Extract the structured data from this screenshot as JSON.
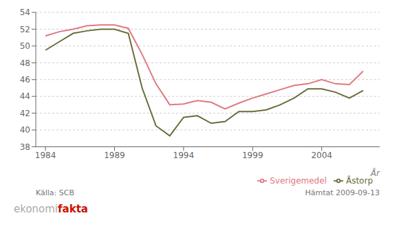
{
  "chart_data": {
    "type": "line",
    "x_label": "År",
    "x": [
      1984,
      1985,
      1986,
      1987,
      1988,
      1989,
      1990,
      1991,
      1992,
      1993,
      1994,
      1995,
      1996,
      1997,
      1998,
      1999,
      2000,
      2001,
      2002,
      2003,
      2004,
      2005,
      2006,
      2007
    ],
    "series": [
      {
        "name": "Sverigemedel",
        "color": "#e07880",
        "values": [
          51.2,
          51.7,
          52.0,
          52.4,
          52.5,
          52.5,
          52.1,
          49.0,
          45.5,
          43.0,
          43.1,
          43.5,
          43.3,
          42.5,
          43.2,
          43.8,
          44.3,
          44.8,
          45.3,
          45.5,
          46.0,
          45.5,
          45.4,
          47.0
        ]
      },
      {
        "name": "Åstorp",
        "color": "#6b6b3a",
        "values": [
          49.5,
          50.5,
          51.5,
          51.8,
          52.0,
          52.0,
          51.5,
          45.0,
          40.5,
          39.3,
          41.5,
          41.7,
          40.8,
          41.0,
          42.2,
          42.2,
          42.4,
          43.0,
          43.8,
          44.9,
          44.9,
          44.5,
          43.8,
          44.7
        ]
      }
    ],
    "xlim": [
      1983.3,
      2008.2
    ],
    "xticks": [
      1984,
      1989,
      1994,
      1999,
      2004
    ],
    "ylim": [
      38,
      54
    ],
    "yticks": [
      38,
      40,
      42,
      44,
      46,
      48,
      50,
      52,
      54
    ],
    "grid": "y",
    "legend": "lower right",
    "annotations": [
      "Källa: SCB",
      "Hämtat 2009-09-13",
      "ekonomi",
      "fakta"
    ]
  }
}
